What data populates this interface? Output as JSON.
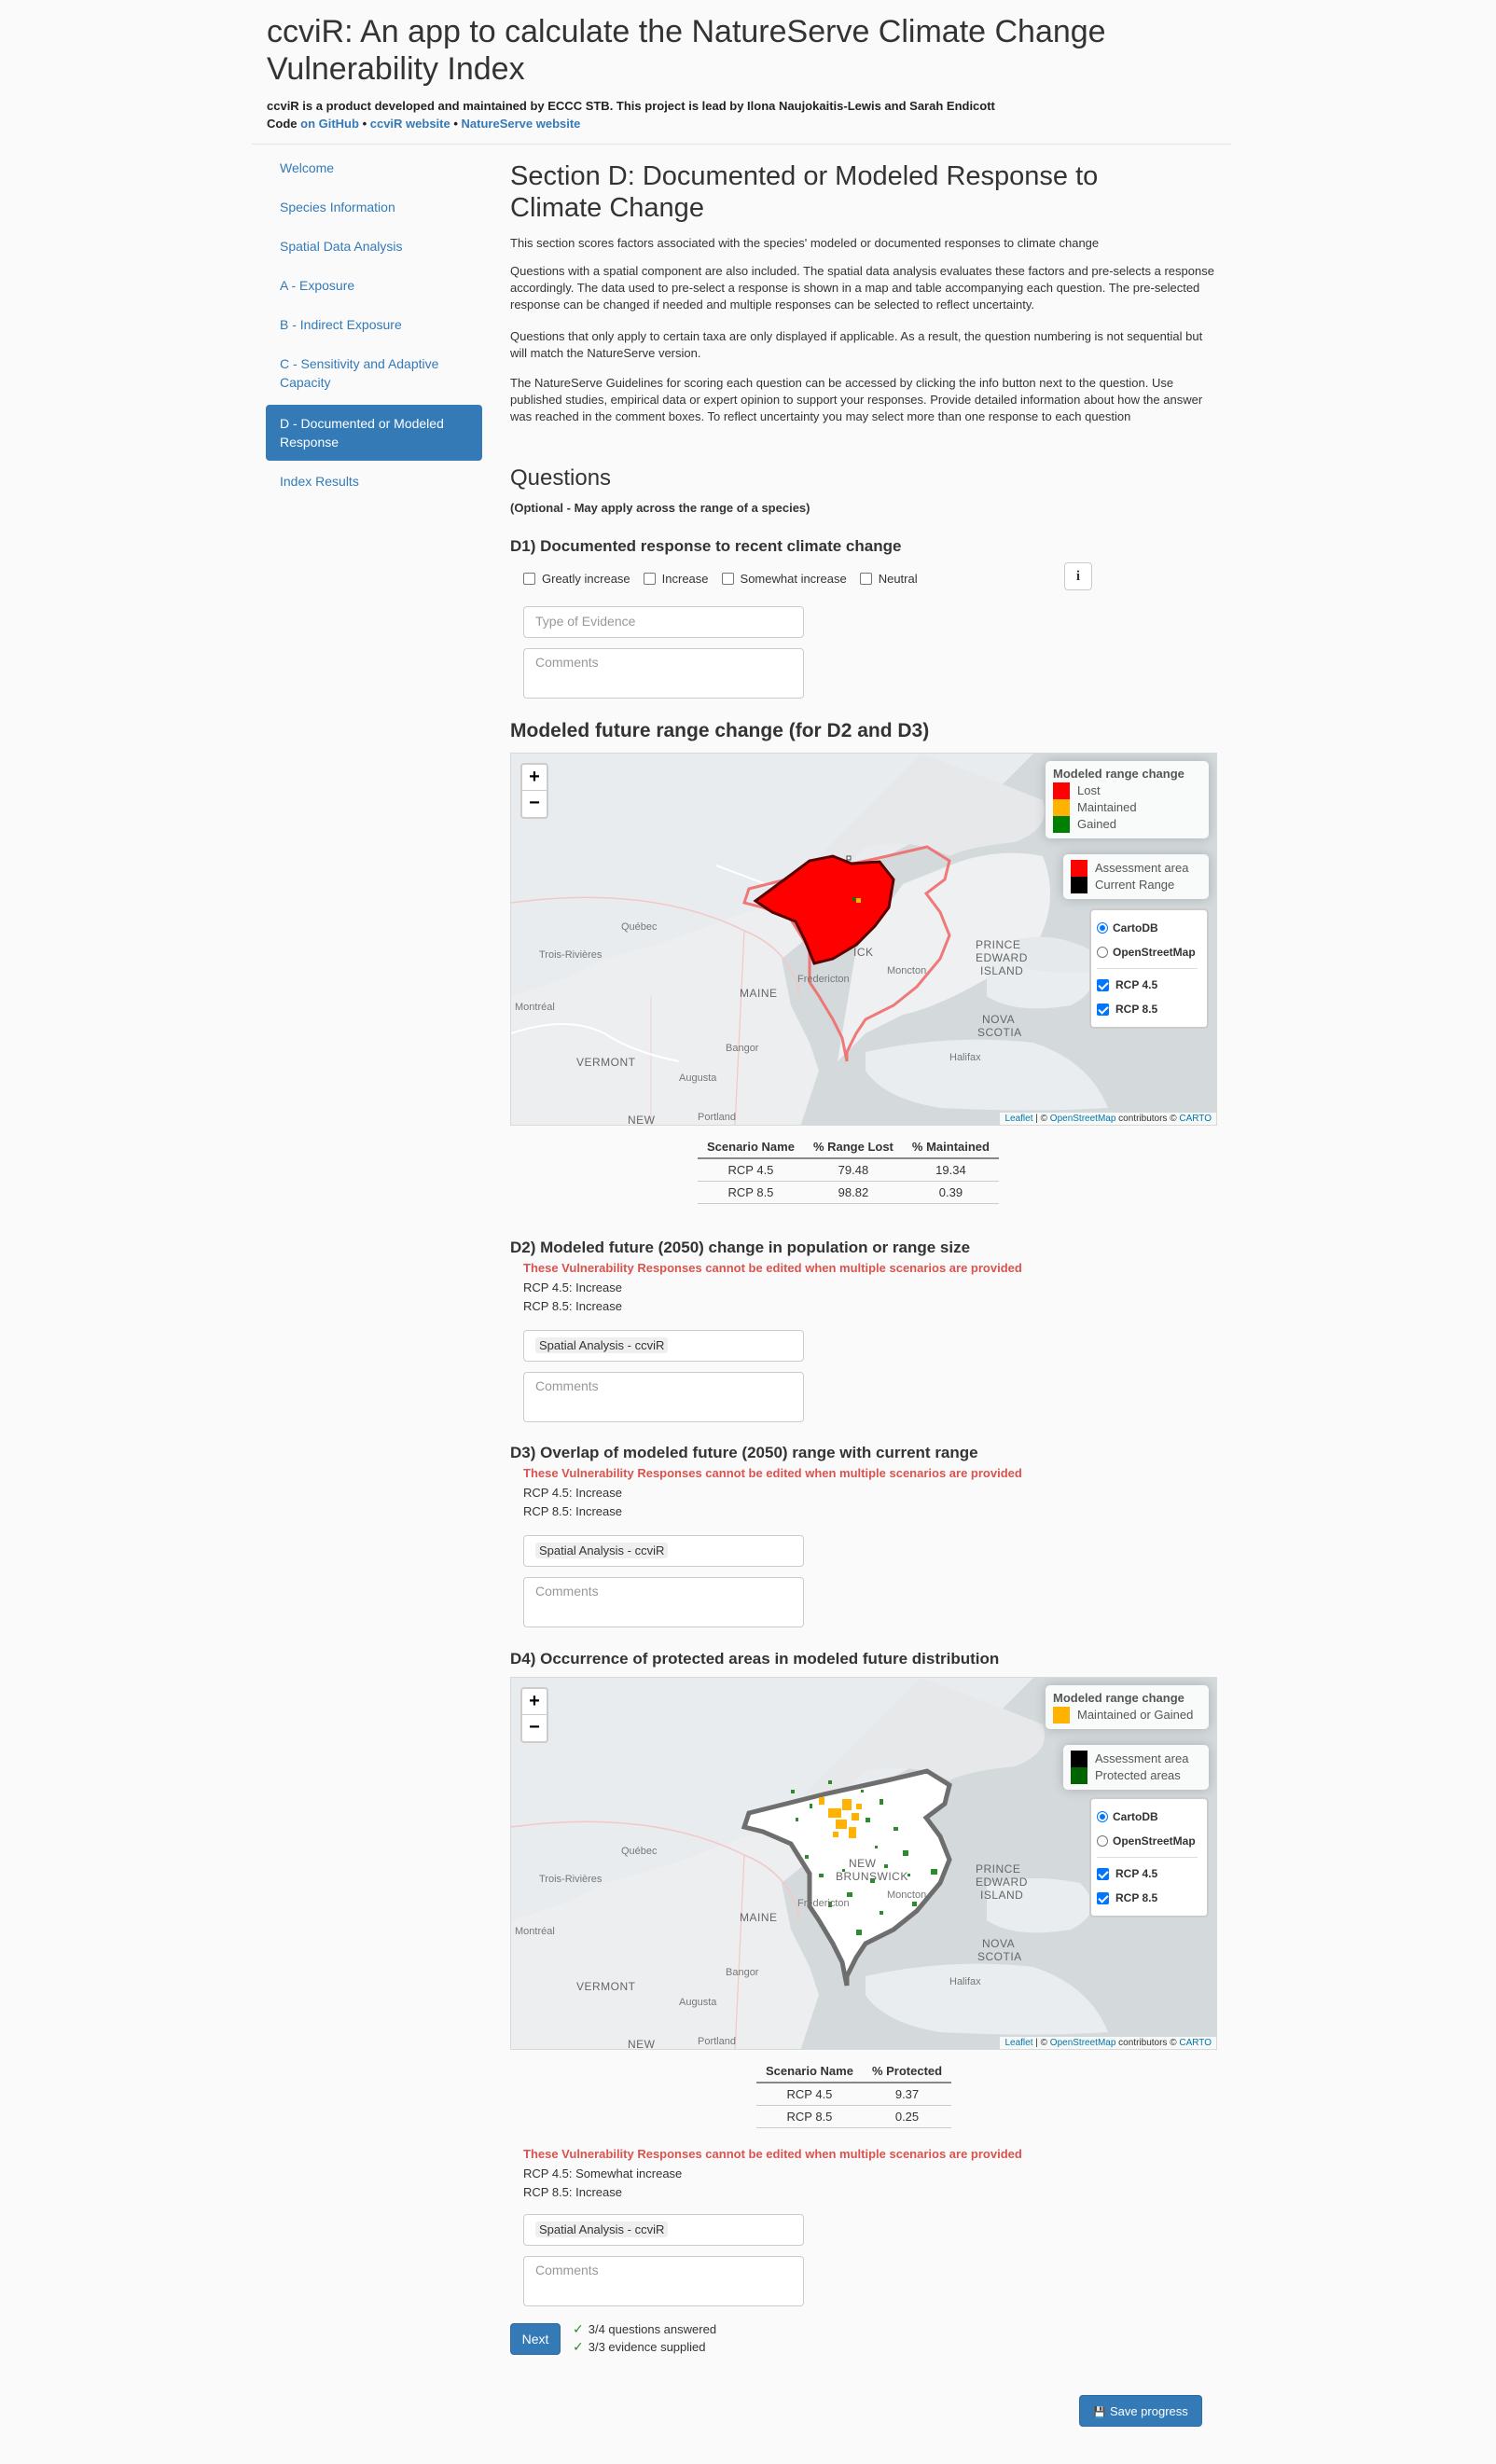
{
  "header": {
    "title": "ccviR: An app to calculate the NatureServe Climate Change Vulnerability Index",
    "credits": "ccviR is a product developed and maintained by ECCC STB. This project is lead by Ilona Naujokaitis-Lewis and Sarah Endicott",
    "code_prefix": "Code ",
    "link_github": "on GitHub",
    "sep1": " • ",
    "link_ccvir": "ccviR website",
    "sep2": " • ",
    "link_natureserve": "NatureServe website"
  },
  "sidebar": {
    "items": [
      {
        "label": "Welcome"
      },
      {
        "label": "Species Information"
      },
      {
        "label": "Spatial Data Analysis"
      },
      {
        "label": "A - Exposure"
      },
      {
        "label": "B - Indirect Exposure"
      },
      {
        "label": "C - Sensitivity and Adaptive Capacity"
      },
      {
        "label": "D - Documented or Modeled Response"
      },
      {
        "label": "Index Results"
      }
    ],
    "active_index": 6
  },
  "section": {
    "title": "Section D: Documented or Modeled Response to Climate Change",
    "p1": "This section scores factors associated with the species' modeled or documented responses to climate change",
    "p2": "Questions with a spatial component are also included. The spatial data analysis evaluates these factors and pre-selects a response accordingly. The data used to pre-select a response is shown in a map and table accompanying each question. The pre-selected response can be changed if needed and multiple responses can be selected to reflect uncertainty.",
    "p3": "Questions that only apply to certain taxa are only displayed if applicable. As a result, the question numbering is not sequential but will match the NatureServe version.",
    "p4": "The NatureServe Guidelines for scoring each question can be accessed by clicking the info button next to the question. Use published studies, empirical data or expert opinion to support your responses. Provide detailed information about how the answer was reached in the comment boxes. To reflect uncertainty you may select more than one response to each question"
  },
  "questions": {
    "heading": "Questions",
    "subheading": "(Optional - May apply across the range of a species)",
    "d1": {
      "title": "D1) Documented response to recent climate change",
      "options": [
        "Greatly increase",
        "Increase",
        "Somewhat increase",
        "Neutral"
      ],
      "info": "i",
      "evidence_placeholder": "Type of Evidence",
      "comments_placeholder": "Comments"
    },
    "map1_heading": "Modeled future range change (for D2 and D3)",
    "d2": {
      "title": "D2) Modeled future (2050) change in population or range size",
      "warning": "These Vulnerability Responses cannot be edited when multiple scenarios are provided",
      "resp1": "RCP 4.5: Increase",
      "resp2": "RCP 8.5: Increase",
      "evidence": "Spatial Analysis - ccviR",
      "comments_placeholder": "Comments"
    },
    "d3": {
      "title": "D3) Overlap of modeled future (2050) range with current range",
      "warning": "These Vulnerability Responses cannot be edited when multiple scenarios are provided",
      "resp1": "RCP 4.5: Increase",
      "resp2": "RCP 8.5: Increase",
      "evidence": "Spatial Analysis - ccviR",
      "comments_placeholder": "Comments"
    },
    "d4": {
      "title": "D4) Occurrence of protected areas in modeled future distribution",
      "warning": "These Vulnerability Responses cannot be edited when multiple scenarios are provided",
      "resp1": "RCP 4.5: Somewhat increase",
      "resp2": "RCP 8.5: Increase",
      "evidence": "Spatial Analysis - ccviR",
      "comments_placeholder": "Comments"
    }
  },
  "map1": {
    "legend_title": "Modeled range change",
    "legend_items": [
      {
        "label": "Lost",
        "color": "#ff0000"
      },
      {
        "label": "Maintained",
        "color": "#ffb300"
      },
      {
        "label": "Gained",
        "color": "#008000"
      }
    ],
    "legend2_items": [
      {
        "label": "Assessment area",
        "color": "#ff0000"
      },
      {
        "label": "Current Range",
        "color": "#000000"
      }
    ],
    "base_layers": [
      "CartoDB",
      "OpenStreetMap"
    ],
    "overlays": [
      "RCP 4.5",
      "RCP 8.5"
    ],
    "attribution_leaflet": "Leaflet",
    "attribution_mid": " | © ",
    "attribution_osm": "OpenStreetMap",
    "attribution_contrib": " contributors © ",
    "attribution_carto": "CARTO",
    "zoom_in": "+",
    "zoom_out": "−"
  },
  "map2": {
    "legend_title": "Modeled range change",
    "legend_items": [
      {
        "label": "Maintained or Gained",
        "color": "#ffb300"
      }
    ],
    "legend2_items": [
      {
        "label": "Assessment area",
        "color": "#000000"
      },
      {
        "label": "Protected areas",
        "color": "#006400"
      }
    ],
    "base_layers": [
      "CartoDB",
      "OpenStreetMap"
    ],
    "overlays": [
      "RCP 4.5",
      "RCP 8.5"
    ]
  },
  "map_labels": {
    "quebec": "Québec",
    "trois": "Trois-Rivières",
    "montreal": "Montréal",
    "maine": "MAINE",
    "vermont": "VERMONT",
    "new": "NEW",
    "bangor": "Bangor",
    "augusta": "Augusta",
    "portland": "Portland",
    "fredericton": "Fredericton",
    "moncton": "Moncton",
    "pei1": "PRINCE",
    "pei2": "EDWARD",
    "pei3": "ISLAND",
    "ns1": "NOVA",
    "ns2": "SCOTIA",
    "halifax": "Halifax",
    "nb_partial": "ICK",
    "nb1": "NEW",
    "nb2": "BRUNSWICK"
  },
  "table1": {
    "headers": [
      "Scenario Name",
      "% Range Lost",
      "% Maintained"
    ],
    "rows": [
      [
        "RCP 4.5",
        "79.48",
        "19.34"
      ],
      [
        "RCP 8.5",
        "98.82",
        "0.39"
      ]
    ]
  },
  "table2": {
    "headers": [
      "Scenario Name",
      "% Protected"
    ],
    "rows": [
      [
        "RCP 4.5",
        "9.37"
      ],
      [
        "RCP 8.5",
        "0.25"
      ]
    ]
  },
  "footer": {
    "next_label": "Next",
    "status1": "3/4 questions answered",
    "status2": "3/3 evidence supplied",
    "save_label": "Save progress"
  }
}
